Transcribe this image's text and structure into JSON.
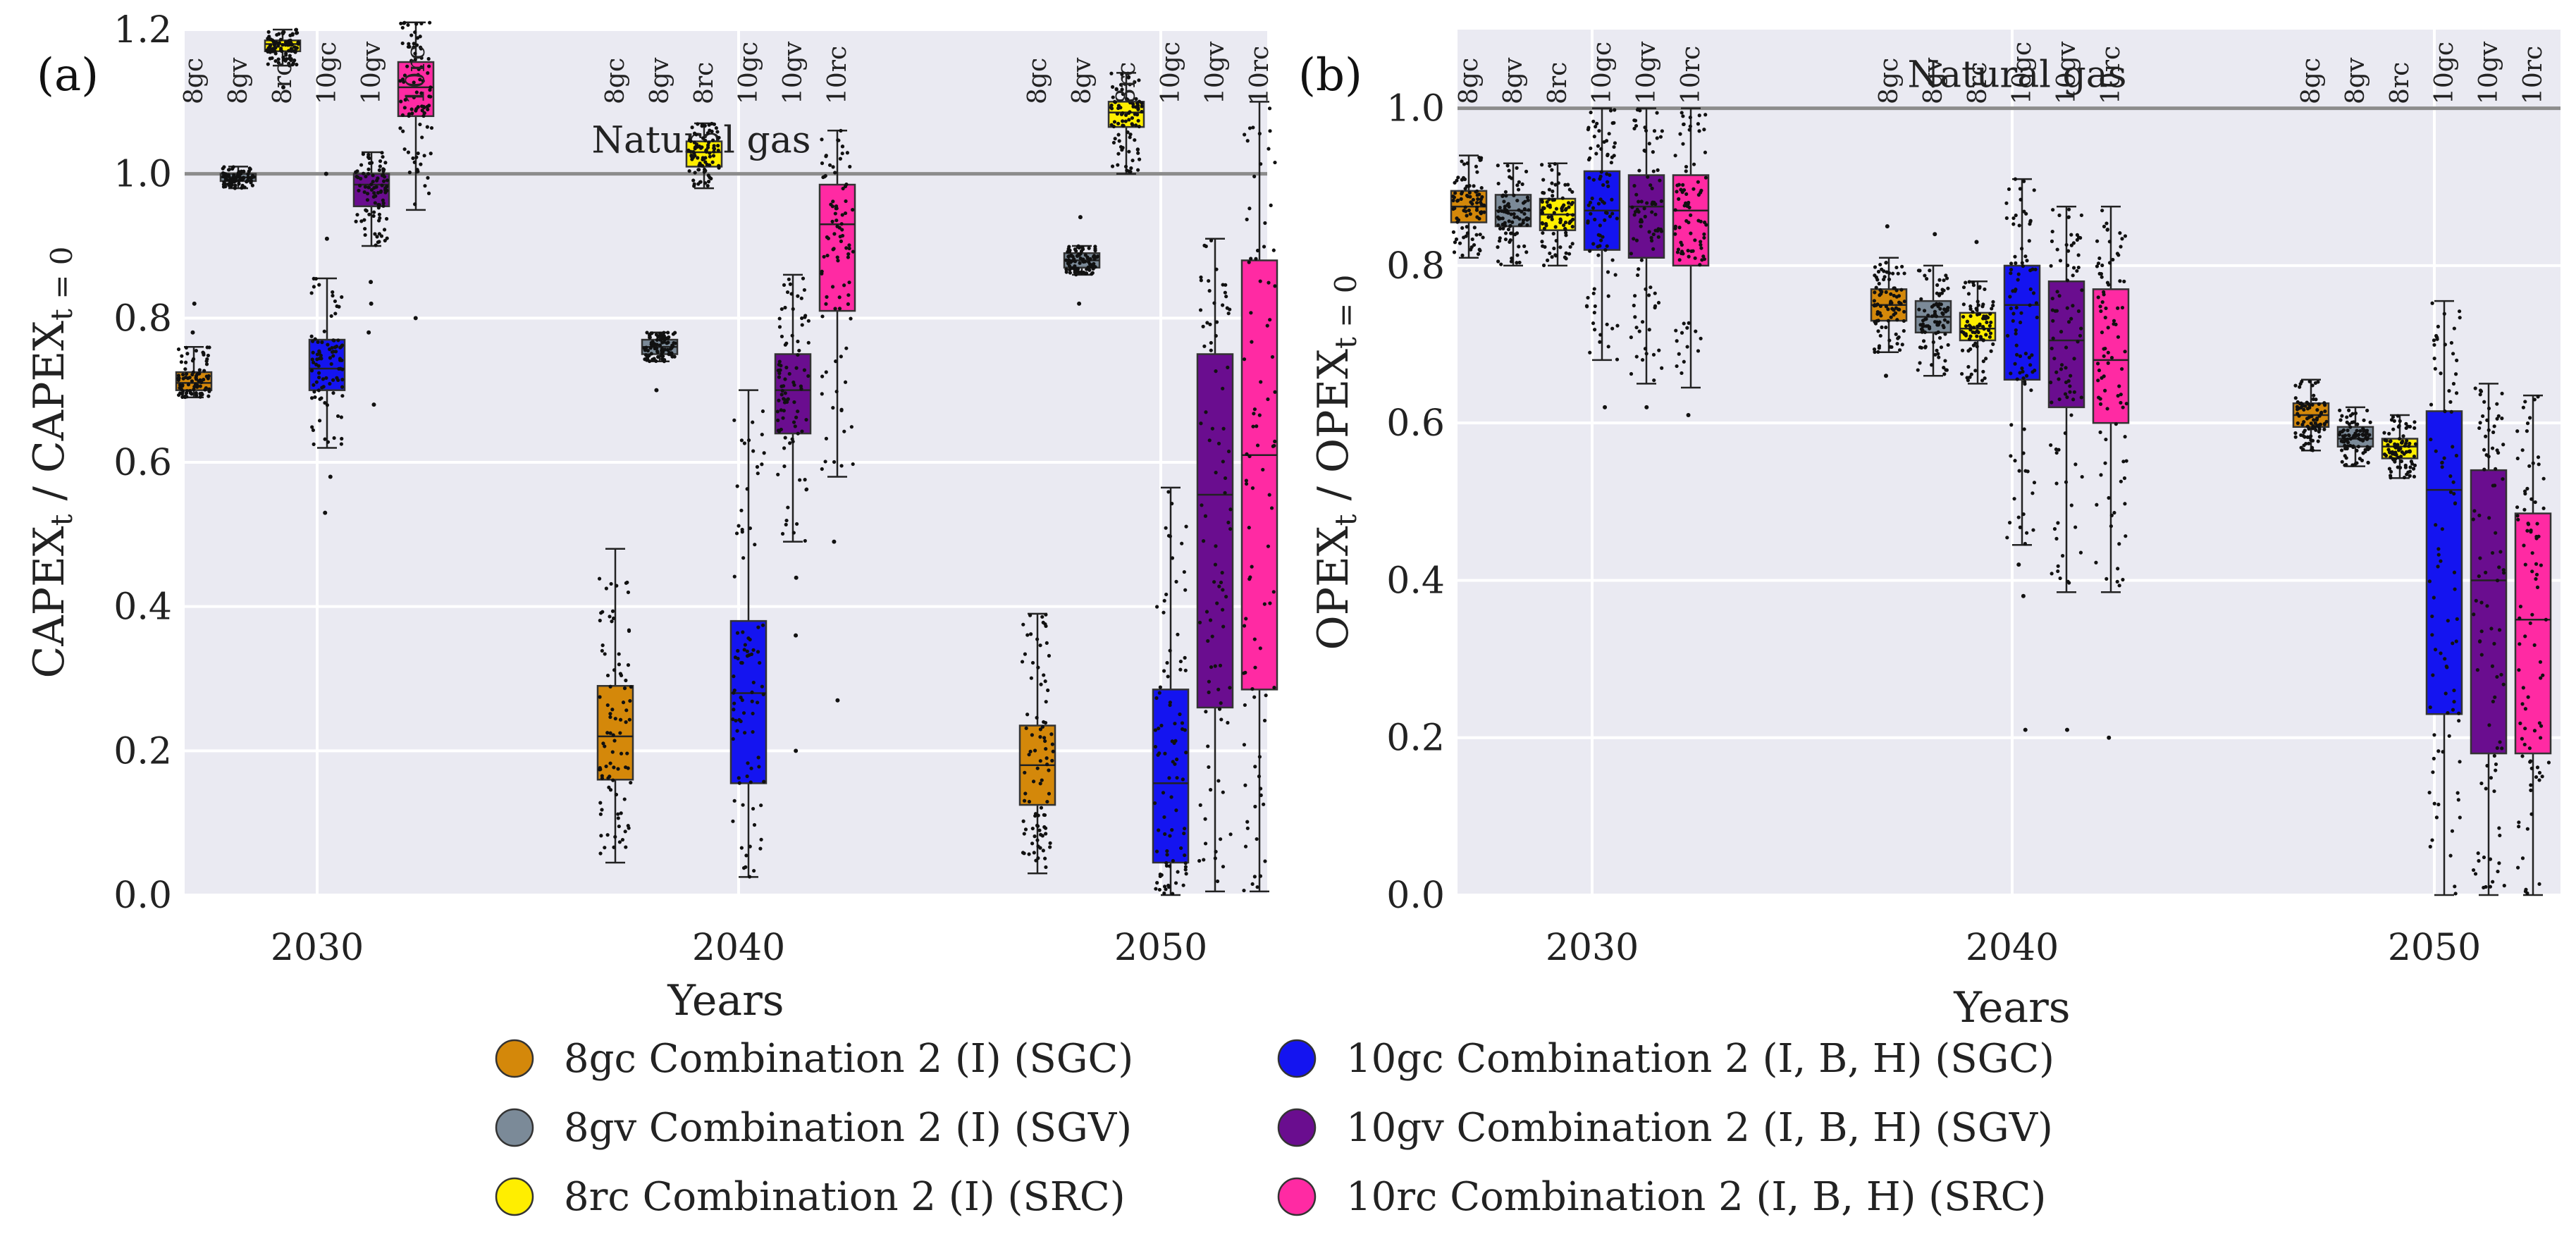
{
  "figure": {
    "legend": [
      {
        "label": "8gc Combination 2 (I) (SGC)",
        "color": "#d4880a"
      },
      {
        "label": "8gv Combination 2 (I) (SGV)",
        "color": "#7b8a98"
      },
      {
        "label": "8rc Combination 2 (I) (SRC)",
        "color": "#ffee00"
      },
      {
        "label": "10gc Combination 2 (I, B, H) (SGC)",
        "color": "#1414f0"
      },
      {
        "label": "10gv Combination 2 (I, B, H) (SGV)",
        "color": "#6a0d8f"
      },
      {
        "label": "10rc Combination 2 (I, B, H) (SRC)",
        "color": "#ff2aa3"
      }
    ]
  },
  "chart_data": [
    {
      "type": "box",
      "panel_label": "(a)",
      "ylabel": "CAPEX_t / CAPEX_t=0",
      "ylabel_main": "CAPEX",
      "ylabel_sub1": "t",
      "ylabel_mid": " / CAPEX",
      "ylabel_sub2": "t = 0",
      "xlabel": "Years",
      "ylim": [
        0,
        1.2
      ],
      "yticks": [
        "0.0",
        "0.2",
        "0.4",
        "0.6",
        "0.8",
        "1.0",
        "1.2"
      ],
      "years": [
        "2030",
        "2040",
        "2050"
      ],
      "series_labels": [
        "8gc",
        "8gv",
        "8rc",
        "10gc",
        "10gv",
        "10rc"
      ],
      "reference_line": {
        "value": 1.0,
        "label": "Natural gas"
      },
      "boxes": {
        "2030": [
          {
            "series": "8gc",
            "whisker_low": 0.69,
            "q1": 0.7,
            "median": 0.71,
            "q3": 0.725,
            "whisker_high": 0.76,
            "outliers": [
              0.78,
              0.82
            ]
          },
          {
            "series": "8gv",
            "whisker_low": 0.98,
            "q1": 0.99,
            "median": 0.995,
            "q3": 1.0,
            "whisker_high": 1.01,
            "outliers": []
          },
          {
            "series": "8rc",
            "whisker_low": 1.15,
            "q1": 1.17,
            "median": 1.18,
            "q3": 1.185,
            "whisker_high": 1.2,
            "outliers": [
              1.12
            ]
          },
          {
            "series": "10gc",
            "whisker_low": 0.62,
            "q1": 0.7,
            "median": 0.73,
            "q3": 0.77,
            "whisker_high": 0.855,
            "outliers": [
              0.53,
              0.58,
              0.91,
              1.0
            ]
          },
          {
            "series": "10gv",
            "whisker_low": 0.9,
            "q1": 0.955,
            "median": 0.985,
            "q3": 1.0,
            "whisker_high": 1.03,
            "outliers": [
              0.68,
              0.78,
              0.82,
              0.85
            ]
          },
          {
            "series": "10rc",
            "whisker_low": 0.95,
            "q1": 1.08,
            "median": 1.12,
            "q3": 1.155,
            "whisker_high": 1.21,
            "outliers": [
              0.8
            ]
          }
        ],
        "2040": [
          {
            "series": "8gc",
            "whisker_low": 0.045,
            "q1": 0.16,
            "median": 0.22,
            "q3": 0.29,
            "whisker_high": 0.48,
            "outliers": []
          },
          {
            "series": "8gv",
            "whisker_low": 0.74,
            "q1": 0.75,
            "median": 0.76,
            "q3": 0.77,
            "whisker_high": 0.78,
            "outliers": [
              0.7
            ]
          },
          {
            "series": "8rc",
            "whisker_low": 0.98,
            "q1": 1.01,
            "median": 1.03,
            "q3": 1.045,
            "whisker_high": 1.07,
            "outliers": []
          },
          {
            "series": "10gc",
            "whisker_low": 0.025,
            "q1": 0.155,
            "median": 0.28,
            "q3": 0.38,
            "whisker_high": 0.7,
            "outliers": []
          },
          {
            "series": "10gv",
            "whisker_low": 0.49,
            "q1": 0.64,
            "median": 0.7,
            "q3": 0.75,
            "whisker_high": 0.86,
            "outliers": [
              0.2,
              0.36,
              0.44
            ]
          },
          {
            "series": "10rc",
            "whisker_low": 0.58,
            "q1": 0.81,
            "median": 0.93,
            "q3": 0.985,
            "whisker_high": 1.06,
            "outliers": [
              0.27,
              0.49
            ]
          }
        ],
        "2050": [
          {
            "series": "8gc",
            "whisker_low": 0.03,
            "q1": 0.125,
            "median": 0.18,
            "q3": 0.235,
            "whisker_high": 0.39,
            "outliers": []
          },
          {
            "series": "8gv",
            "whisker_low": 0.86,
            "q1": 0.87,
            "median": 0.88,
            "q3": 0.89,
            "whisker_high": 0.9,
            "outliers": [
              0.82,
              0.94
            ]
          },
          {
            "series": "8rc",
            "whisker_low": 1.0,
            "q1": 1.065,
            "median": 1.085,
            "q3": 1.1,
            "whisker_high": 1.14,
            "outliers": []
          },
          {
            "series": "10gc",
            "whisker_low": 0.0,
            "q1": 0.045,
            "median": 0.155,
            "q3": 0.285,
            "whisker_high": 0.565,
            "outliers": []
          },
          {
            "series": "10gv",
            "whisker_low": 0.005,
            "q1": 0.26,
            "median": 0.555,
            "q3": 0.75,
            "whisker_high": 0.91,
            "outliers": []
          },
          {
            "series": "10rc",
            "whisker_low": 0.005,
            "q1": 0.285,
            "median": 0.61,
            "q3": 0.88,
            "whisker_high": 1.1,
            "outliers": []
          }
        ]
      }
    },
    {
      "type": "box",
      "panel_label": "(b)",
      "ylabel": "OPEX_t / OPEX_t=0",
      "ylabel_main": "OPEX",
      "ylabel_sub1": "t",
      "ylabel_mid": " / OPEX",
      "ylabel_sub2": "t = 0",
      "xlabel": "Years",
      "ylim": [
        0,
        1.1
      ],
      "yticks": [
        "0.0",
        "0.2",
        "0.4",
        "0.6",
        "0.8",
        "1.0"
      ],
      "years": [
        "2030",
        "2040",
        "2050"
      ],
      "series_labels": [
        "8gc",
        "8gv",
        "8rc",
        "10gc",
        "10gv",
        "10rc"
      ],
      "reference_line": {
        "value": 1.0,
        "label": "Natural gas"
      },
      "boxes": {
        "2030": [
          {
            "series": "8gc",
            "whisker_low": 0.81,
            "q1": 0.855,
            "median": 0.875,
            "q3": 0.895,
            "whisker_high": 0.94,
            "outliers": []
          },
          {
            "series": "8gv",
            "whisker_low": 0.8,
            "q1": 0.85,
            "median": 0.87,
            "q3": 0.89,
            "whisker_high": 0.93,
            "outliers": []
          },
          {
            "series": "8rc",
            "whisker_low": 0.8,
            "q1": 0.845,
            "median": 0.865,
            "q3": 0.885,
            "whisker_high": 0.93,
            "outliers": []
          },
          {
            "series": "10gc",
            "whisker_low": 0.68,
            "q1": 0.82,
            "median": 0.87,
            "q3": 0.92,
            "whisker_high": 1.0,
            "outliers": [
              0.62
            ]
          },
          {
            "series": "10gv",
            "whisker_low": 0.65,
            "q1": 0.81,
            "median": 0.875,
            "q3": 0.915,
            "whisker_high": 1.0,
            "outliers": [
              0.62
            ]
          },
          {
            "series": "10rc",
            "whisker_low": 0.645,
            "q1": 0.8,
            "median": 0.87,
            "q3": 0.915,
            "whisker_high": 1.0,
            "outliers": [
              0.61
            ]
          }
        ],
        "2040": [
          {
            "series": "8gc",
            "whisker_low": 0.69,
            "q1": 0.73,
            "median": 0.75,
            "q3": 0.77,
            "whisker_high": 0.81,
            "outliers": [
              0.66,
              0.85
            ]
          },
          {
            "series": "8gv",
            "whisker_low": 0.66,
            "q1": 0.715,
            "median": 0.735,
            "q3": 0.755,
            "whisker_high": 0.8,
            "outliers": [
              0.84
            ]
          },
          {
            "series": "8rc",
            "whisker_low": 0.65,
            "q1": 0.705,
            "median": 0.72,
            "q3": 0.74,
            "whisker_high": 0.78,
            "outliers": [
              0.83
            ]
          },
          {
            "series": "10gc",
            "whisker_low": 0.445,
            "q1": 0.655,
            "median": 0.75,
            "q3": 0.8,
            "whisker_high": 0.91,
            "outliers": [
              0.21,
              0.38,
              0.42
            ]
          },
          {
            "series": "10gv",
            "whisker_low": 0.385,
            "q1": 0.62,
            "median": 0.705,
            "q3": 0.78,
            "whisker_high": 0.875,
            "outliers": [
              0.21
            ]
          },
          {
            "series": "10rc",
            "whisker_low": 0.385,
            "q1": 0.6,
            "median": 0.68,
            "q3": 0.77,
            "whisker_high": 0.875,
            "outliers": [
              0.2
            ]
          }
        ],
        "2050": [
          {
            "series": "8gc",
            "whisker_low": 0.565,
            "q1": 0.595,
            "median": 0.61,
            "q3": 0.625,
            "whisker_high": 0.655,
            "outliers": []
          },
          {
            "series": "8gv",
            "whisker_low": 0.545,
            "q1": 0.57,
            "median": 0.58,
            "q3": 0.595,
            "whisker_high": 0.62,
            "outliers": []
          },
          {
            "series": "8rc",
            "whisker_low": 0.53,
            "q1": 0.555,
            "median": 0.57,
            "q3": 0.58,
            "whisker_high": 0.61,
            "outliers": []
          },
          {
            "series": "10gc",
            "whisker_low": 0.0,
            "q1": 0.23,
            "median": 0.515,
            "q3": 0.615,
            "whisker_high": 0.755,
            "outliers": []
          },
          {
            "series": "10gv",
            "whisker_low": 0.0,
            "q1": 0.18,
            "median": 0.4,
            "q3": 0.54,
            "whisker_high": 0.65,
            "outliers": []
          },
          {
            "series": "10rc",
            "whisker_low": 0.0,
            "q1": 0.18,
            "median": 0.35,
            "q3": 0.485,
            "whisker_high": 0.635,
            "outliers": []
          }
        ]
      }
    }
  ]
}
